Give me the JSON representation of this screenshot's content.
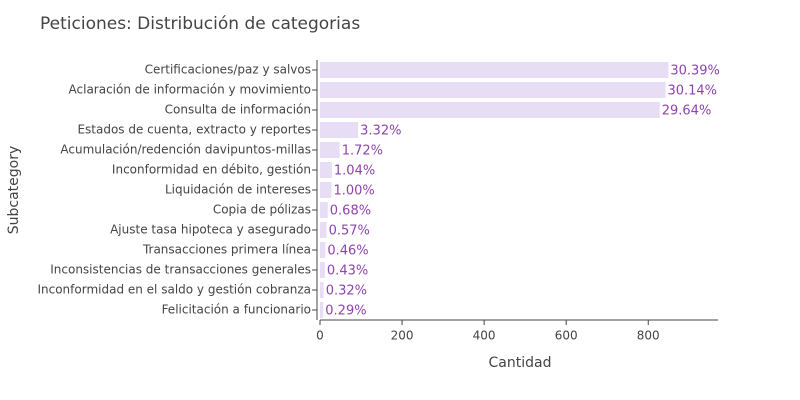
{
  "chart_data": {
    "type": "bar",
    "orientation": "horizontal",
    "title": "Peticiones: Distribución de categorias",
    "x_label": "Cantidad",
    "y_label": "Subcategory",
    "categories": [
      "Certificaciones/paz y salvos",
      "Aclaración de información y movimiento",
      "Consulta de información",
      "Estados de cuenta, extracto y reportes",
      "Acumulación/redención davipuntos-millas",
      "Inconformidad en débito, gestión",
      "Liquidación de intereses",
      "Copia de pólizas",
      "Ajuste tasa hipoteca y asegurado",
      "Transacciones primera línea",
      "Inconsistencias de transacciones generales",
      "Inconformidad en el saldo y gestión cobranza",
      "Felicitación a funcionario"
    ],
    "values": [
      849,
      842,
      828,
      93,
      48,
      29,
      28,
      19,
      16,
      13,
      12,
      9,
      8
    ],
    "percent_labels": [
      "30.39%",
      "30.14%",
      "29.64%",
      "3.32%",
      "1.72%",
      "1.04%",
      "1.00%",
      "0.68%",
      "0.57%",
      "0.46%",
      "0.43%",
      "0.32%",
      "0.29%"
    ],
    "color": "#e7def6",
    "label_color": "#8e44ad",
    "xlim": [
      0,
      970
    ],
    "xticks": [
      0,
      200,
      400,
      600,
      800
    ],
    "grid": false
  }
}
